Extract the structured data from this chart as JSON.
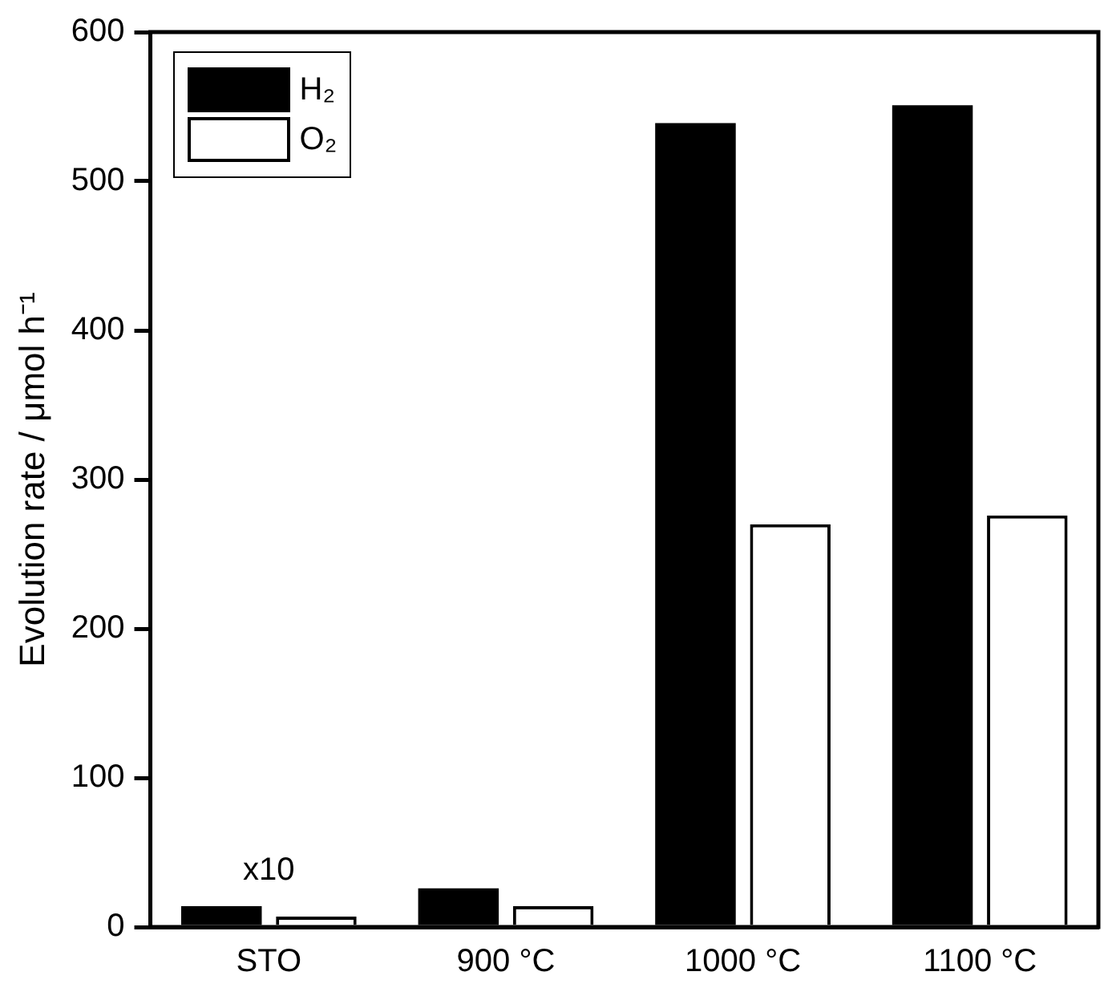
{
  "chart_data": {
    "type": "bar",
    "ylabel": "Evolution rate / μmol h⁻¹",
    "categories": [
      "STO",
      "900 °C",
      "1000 °C",
      "1100 °C"
    ],
    "series": [
      {
        "name": "H₂",
        "color": "#000000",
        "values": [
          14,
          26,
          539,
          551
        ]
      },
      {
        "name": "O₂",
        "color": "#ffffff",
        "values": [
          7,
          14,
          270,
          276
        ]
      }
    ],
    "ylim": [
      0,
      600
    ],
    "yticks": [
      0,
      100,
      200,
      300,
      400,
      500,
      600
    ],
    "grid": false,
    "legend": "top left",
    "annotations": [
      {
        "text": "x10",
        "x": "STO",
        "y": 14
      }
    ]
  }
}
